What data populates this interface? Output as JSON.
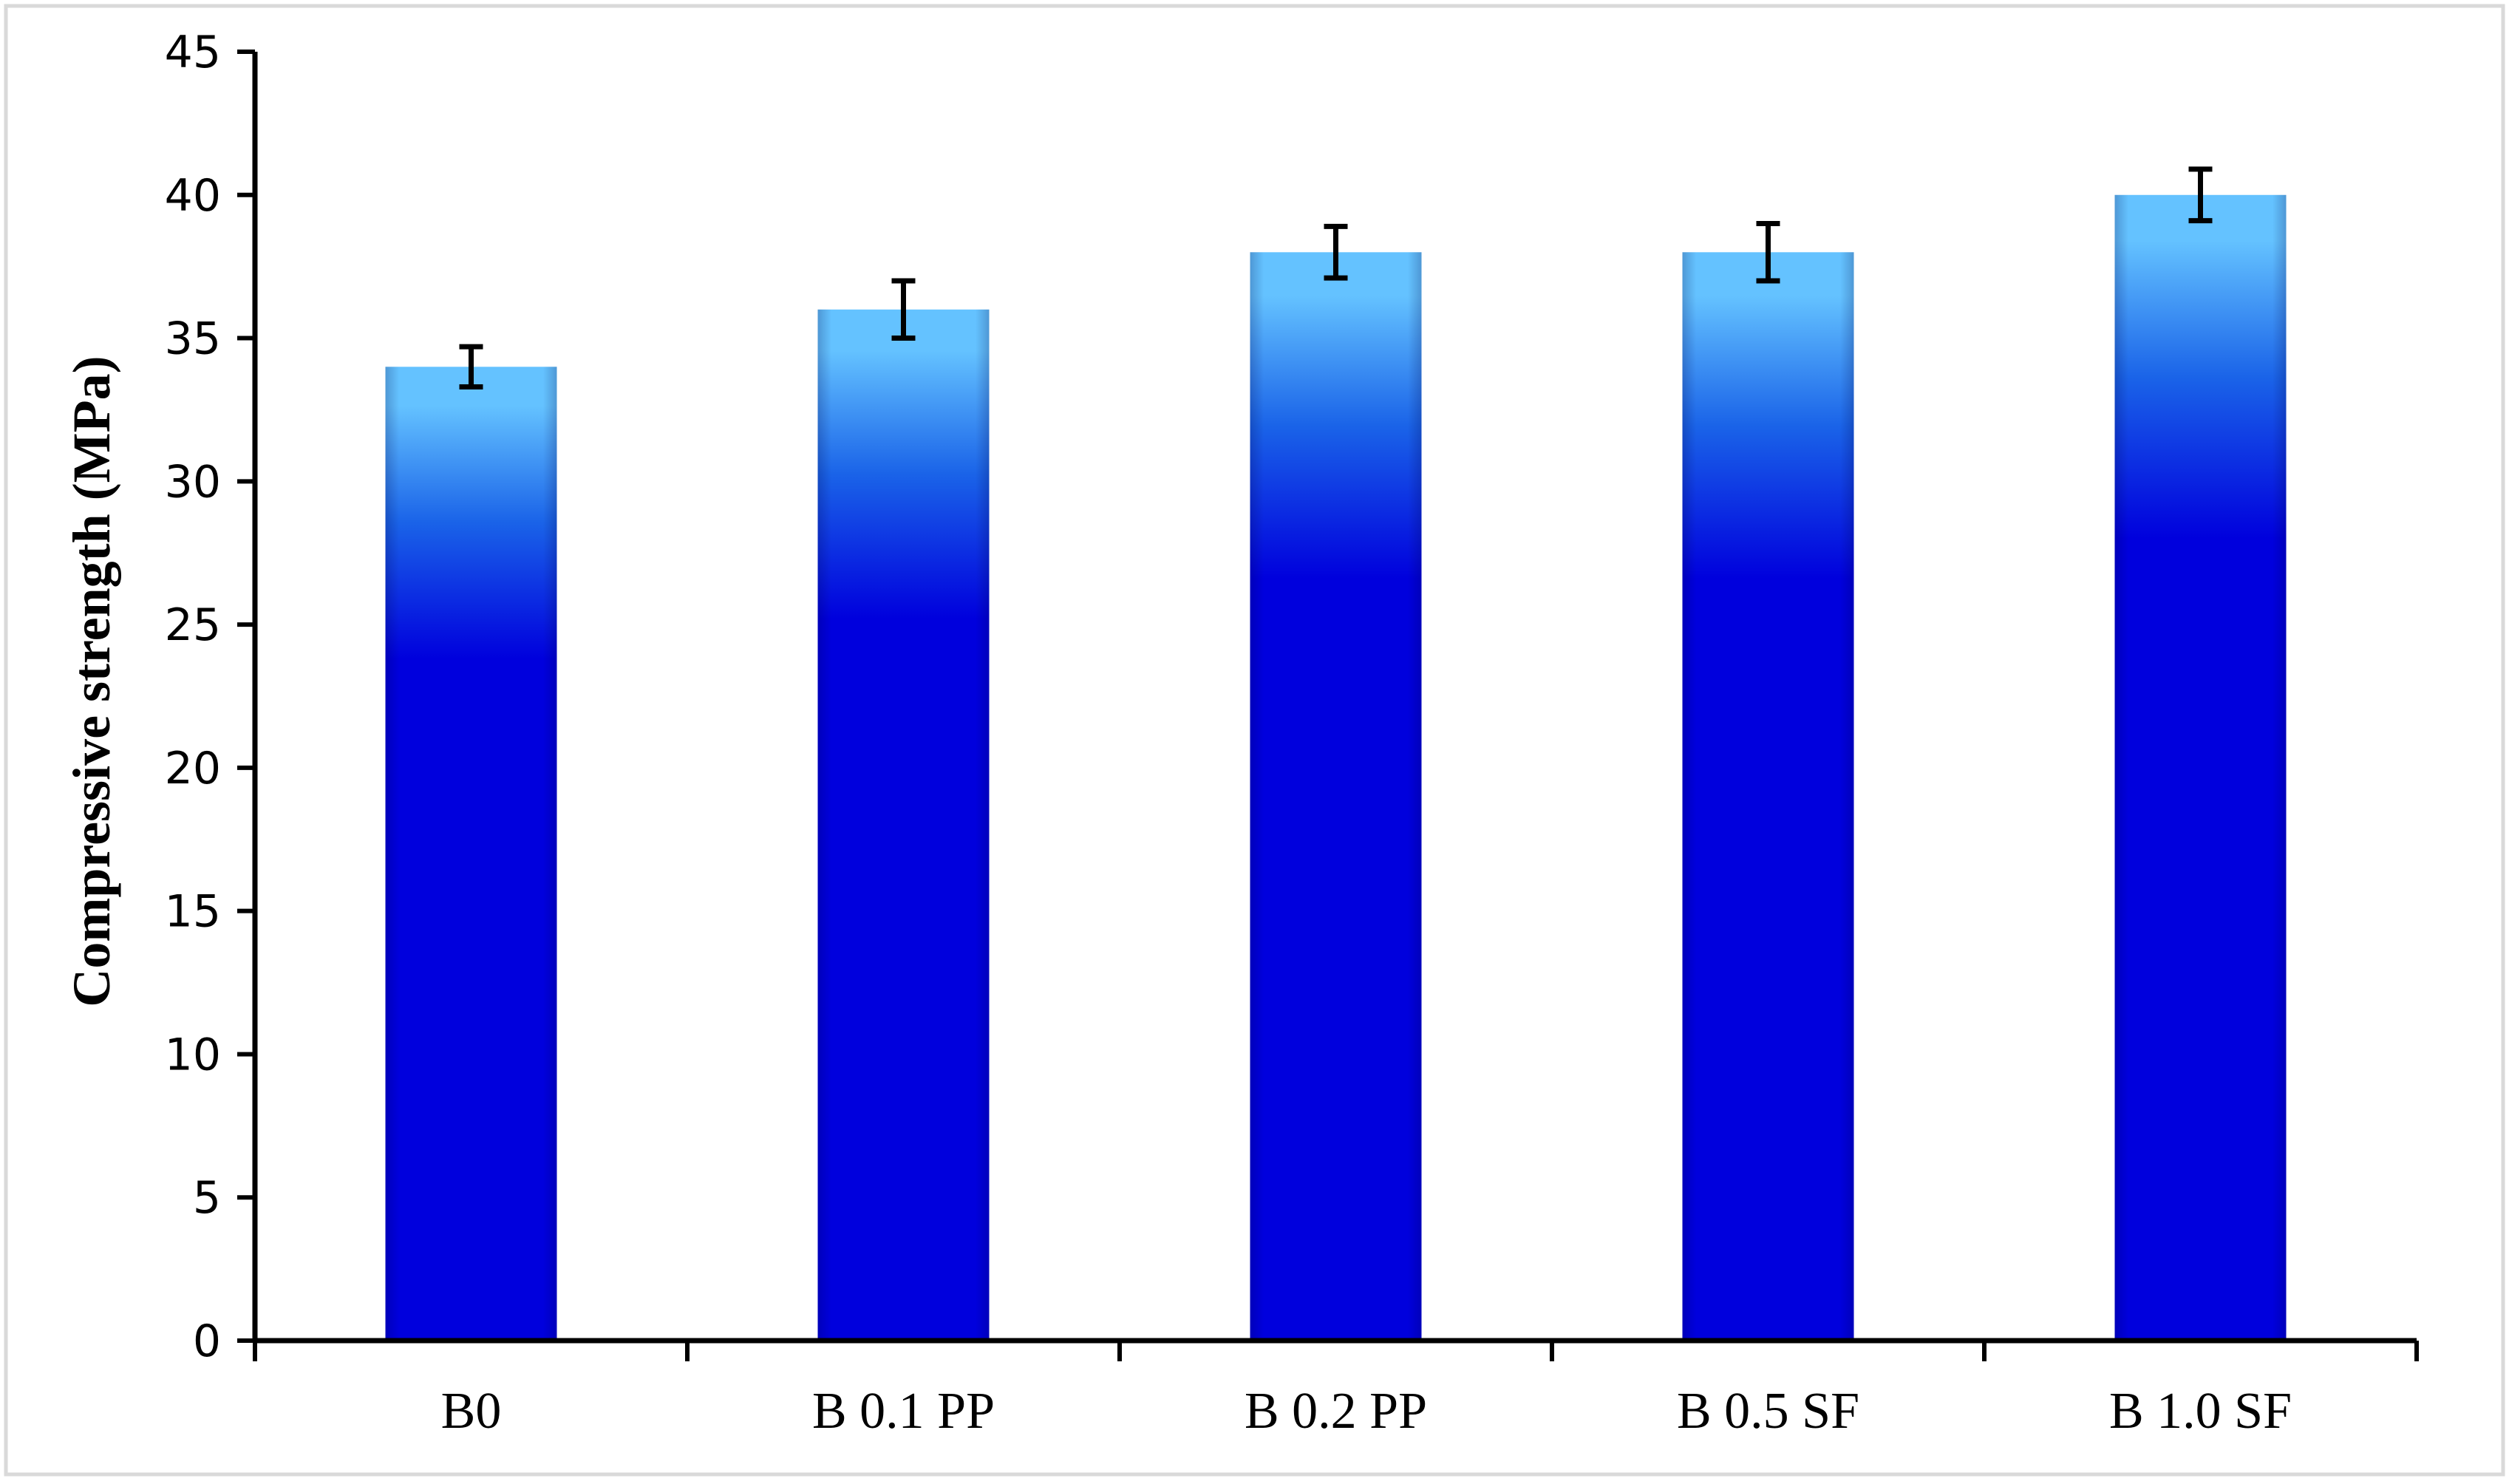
{
  "chart_data": {
    "type": "bar",
    "title": "",
    "xlabel": "",
    "ylabel": "Compressive strength (MPa)",
    "categories": [
      "B0",
      "B 0.1 PP",
      "B 0.2 PP",
      "B 0.5 SF",
      "B 1.0 SF"
    ],
    "values": [
      34,
      36,
      38,
      38,
      40
    ],
    "error": [
      0.7,
      1.0,
      0.9,
      1.0,
      0.9
    ],
    "ylim": [
      0,
      45
    ],
    "yticks": [
      "0",
      "5",
      "10",
      "15",
      "20",
      "25",
      "30",
      "35",
      "40",
      "45"
    ],
    "grid": false,
    "legend": "none",
    "colors": {
      "bar_top": "#64c2ff",
      "bar_mid": "#1a63e8",
      "bar_bottom": "#0000dd",
      "error_bar": "#000000",
      "axis": "#000000",
      "frame": "#d9d9d9"
    }
  }
}
